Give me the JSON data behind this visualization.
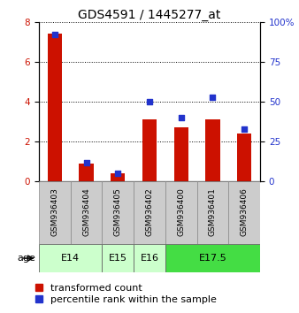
{
  "title": "GDS4591 / 1445277_at",
  "samples": [
    "GSM936403",
    "GSM936404",
    "GSM936405",
    "GSM936402",
    "GSM936400",
    "GSM936401",
    "GSM936406"
  ],
  "red_values": [
    7.4,
    0.9,
    0.4,
    3.1,
    2.7,
    3.1,
    2.4
  ],
  "blue_values": [
    92,
    12,
    5,
    50,
    40,
    53,
    33
  ],
  "left_ylim": [
    0,
    8
  ],
  "right_ylim": [
    0,
    100
  ],
  "left_yticks": [
    0,
    2,
    4,
    6,
    8
  ],
  "right_yticks": [
    0,
    25,
    50,
    75,
    100
  ],
  "right_yticklabels": [
    "0",
    "25",
    "50",
    "75",
    "100%"
  ],
  "red_color": "#cc1100",
  "blue_color": "#2233cc",
  "sample_bg_color": "#cccccc",
  "background_color": "#ffffff",
  "legend_red": "transformed count",
  "legend_blue": "percentile rank within the sample",
  "title_fontsize": 10,
  "tick_fontsize": 7.5,
  "label_fontsize": 8,
  "age_groups": [
    {
      "label": "E14",
      "start": 0,
      "end": 2,
      "color": "#ccffcc"
    },
    {
      "label": "E15",
      "start": 2,
      "end": 3,
      "color": "#ccffcc"
    },
    {
      "label": "E16",
      "start": 3,
      "end": 4,
      "color": "#ccffcc"
    },
    {
      "label": "E17.5",
      "start": 4,
      "end": 7,
      "color": "#44dd44"
    }
  ]
}
